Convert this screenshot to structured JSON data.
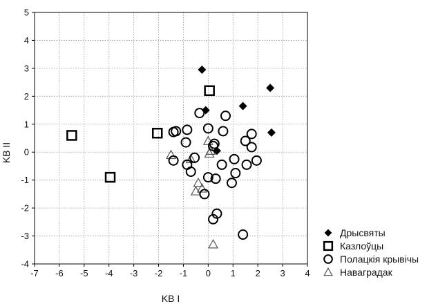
{
  "chart_data": {
    "type": "scatter",
    "title": "",
    "xlabel": "KB I",
    "ylabel": "KB II",
    "xlim": [
      -7,
      4
    ],
    "ylim": [
      -4,
      5
    ],
    "xticks": [
      "-7",
      "-6",
      "-5",
      "-4",
      "-3",
      "-2",
      "-1",
      "0",
      "1",
      "2",
      "3",
      "4"
    ],
    "yticks": [
      "-4",
      "-3",
      "-2",
      "-1",
      "0",
      "1",
      "2",
      "3",
      "4",
      "5"
    ],
    "grid": true,
    "legend_position": "bottom-right",
    "series": [
      {
        "name": "Дрысвяты",
        "marker": "filled-diamond",
        "color": "#000000",
        "points": [
          {
            "x": -0.25,
            "y": 2.95
          },
          {
            "x": 2.5,
            "y": 2.3
          },
          {
            "x": 1.4,
            "y": 1.65
          },
          {
            "x": -0.1,
            "y": 1.5
          },
          {
            "x": 2.55,
            "y": 0.7
          },
          {
            "x": 0.35,
            "y": 0.05
          }
        ]
      },
      {
        "name": "Казлоўцы",
        "marker": "open-square",
        "color": "#000000",
        "points": [
          {
            "x": 0.05,
            "y": 2.2
          },
          {
            "x": -5.5,
            "y": 0.6
          },
          {
            "x": -2.05,
            "y": 0.68
          },
          {
            "x": -3.95,
            "y": -0.9
          }
        ]
      },
      {
        "name": "Полацкія крывічы",
        "marker": "open-circle",
        "color": "#000000",
        "points": [
          {
            "x": -0.35,
            "y": 1.4
          },
          {
            "x": 0.7,
            "y": 1.3
          },
          {
            "x": -0.85,
            "y": 0.8
          },
          {
            "x": 0.0,
            "y": 0.85
          },
          {
            "x": 0.6,
            "y": 0.75
          },
          {
            "x": -1.3,
            "y": 0.75
          },
          {
            "x": -1.4,
            "y": 0.72
          },
          {
            "x": 1.75,
            "y": 0.65
          },
          {
            "x": -0.9,
            "y": 0.35
          },
          {
            "x": 1.5,
            "y": 0.4
          },
          {
            "x": 1.75,
            "y": 0.18
          },
          {
            "x": 0.25,
            "y": 0.3
          },
          {
            "x": 0.2,
            "y": 0.22
          },
          {
            "x": -0.55,
            "y": -0.2
          },
          {
            "x": 1.05,
            "y": -0.25
          },
          {
            "x": -1.4,
            "y": -0.3
          },
          {
            "x": 1.95,
            "y": -0.3
          },
          {
            "x": -0.85,
            "y": -0.45
          },
          {
            "x": 0.55,
            "y": -0.45
          },
          {
            "x": 1.55,
            "y": -0.45
          },
          {
            "x": -0.7,
            "y": -0.7
          },
          {
            "x": 1.1,
            "y": -0.75
          },
          {
            "x": 0.0,
            "y": -0.9
          },
          {
            "x": 0.3,
            "y": -0.95
          },
          {
            "x": 0.95,
            "y": -1.1
          },
          {
            "x": -0.15,
            "y": -1.5
          },
          {
            "x": 0.35,
            "y": -2.2
          },
          {
            "x": 0.2,
            "y": -2.4
          },
          {
            "x": 1.4,
            "y": -2.95
          }
        ]
      },
      {
        "name": "Наваградак",
        "marker": "open-triangle",
        "color": "#000000",
        "points": [
          {
            "x": 0.0,
            "y": 0.4
          },
          {
            "x": -1.5,
            "y": -0.1
          },
          {
            "x": -0.7,
            "y": -0.25
          },
          {
            "x": 0.05,
            "y": -0.05
          },
          {
            "x": 0.1,
            "y": 0.05
          },
          {
            "x": -0.4,
            "y": -1.1
          },
          {
            "x": -0.5,
            "y": -1.4
          },
          {
            "x": -0.25,
            "y": -1.3
          },
          {
            "x": 0.2,
            "y": -3.3
          }
        ]
      }
    ]
  }
}
